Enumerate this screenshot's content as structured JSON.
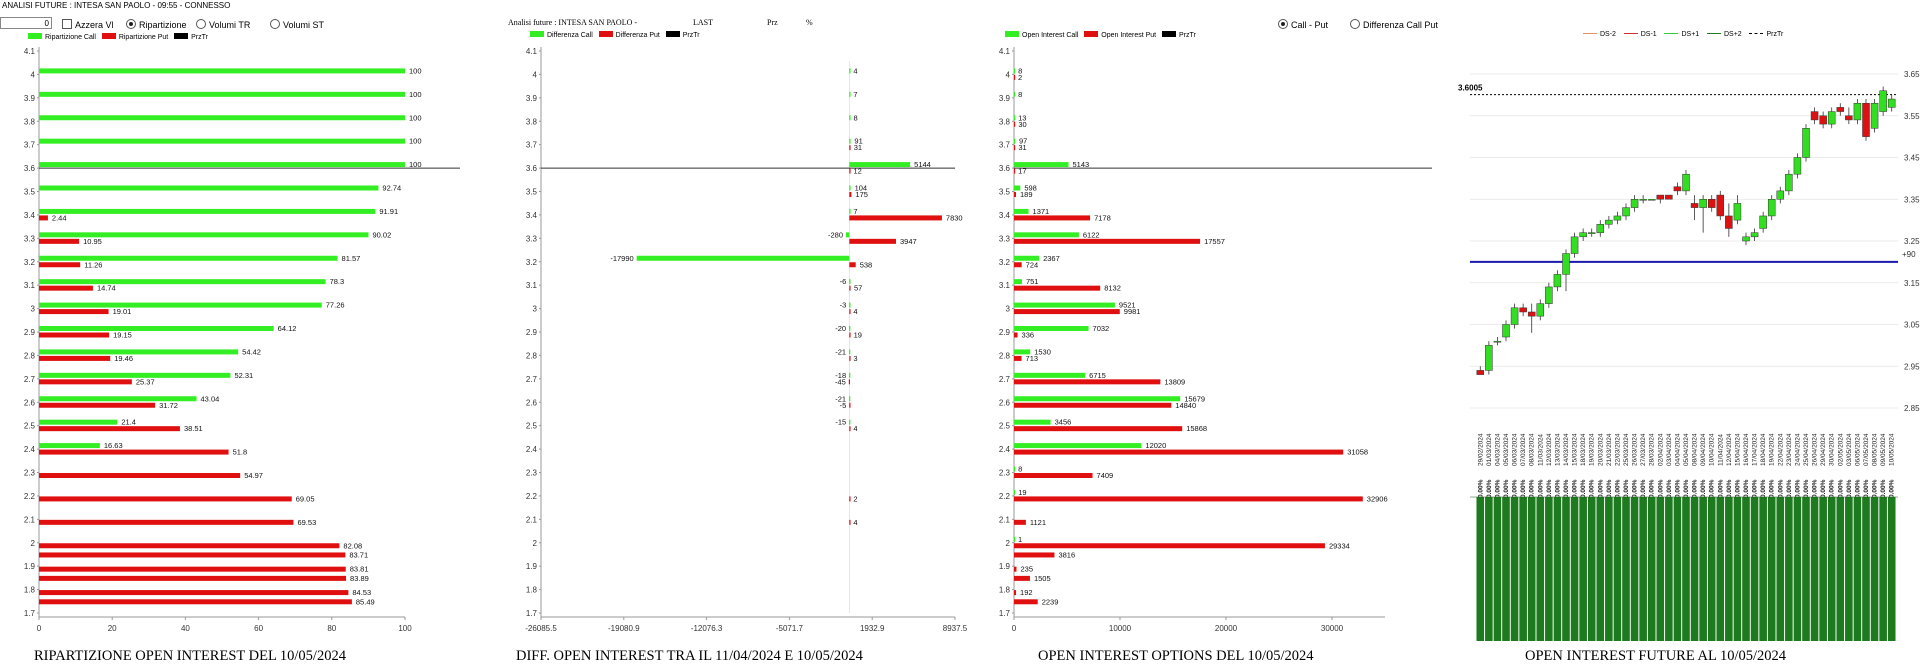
{
  "header": {
    "title": "ANALISI FUTURE : INTESA SAN PAOLO - 09:55 - CONNESSO",
    "input_value": "0",
    "azzera_label": "Azzera Vl",
    "radio_options": [
      "Ripartizione",
      "Volumi TR",
      "Volumi ST"
    ],
    "selected_radio": "Ripartizione"
  },
  "panel1_legend": [
    "Ripartizione Call",
    "Ripartizione Put",
    "PrzTr"
  ],
  "panel2_header": {
    "title": "Analisi future : INTESA SAN PAOLO -",
    "last_label": "LAST",
    "prz_label": "Prz",
    "pct_label": "%"
  },
  "panel2_legend": [
    "Differenza Call",
    "Differenza Put",
    "PrzTr"
  ],
  "panel3_legend": [
    "Open Interest Call",
    "Open Interest Put",
    "PrzTr"
  ],
  "panel3_radios": [
    "Call - Put",
    "Differenza Call Put"
  ],
  "panel3_selected_radio": "Call - Put",
  "panel4_legend": [
    "DS-2",
    "DS-1",
    "DS+1",
    "DS+2",
    "PrzTr"
  ],
  "colors": {
    "call": "#33ee22",
    "put": "#e01010",
    "blue_line": "#1a1aaa",
    "oi_bar": "#1e7a1e"
  },
  "chart_data": [
    {
      "type": "bar",
      "orientation": "horizontal",
      "title": "RIPARTIZIONE OPEN INTEREST DEL 10/05/2024",
      "categories": [
        "4.1",
        "4",
        "3.9",
        "3.8",
        "3.7",
        "3.6",
        "3.5",
        "3.4",
        "3.3",
        "3.2",
        "3.1",
        "3",
        "2.9",
        "2.8",
        "2.7",
        "2.6",
        "2.5",
        "2.4",
        "2.3",
        "2.2",
        "2.1",
        "2",
        "1.9",
        "1.8",
        "1.7"
      ],
      "series": [
        {
          "name": "Ripartizione Call",
          "values": [
            null,
            100,
            100,
            100,
            100,
            100,
            92.74,
            91.91,
            90.02,
            81.57,
            78.3,
            77.26,
            64.12,
            54.42,
            52.31,
            43.04,
            21.4,
            16.63,
            null,
            null,
            null,
            null,
            null,
            null,
            null
          ]
        },
        {
          "name": "Ripartizione Put",
          "values": [
            null,
            null,
            null,
            null,
            null,
            null,
            null,
            2.44,
            10.95,
            11.26,
            14.74,
            19.01,
            19.15,
            19.46,
            25.37,
            31.72,
            38.51,
            51.8,
            54.97,
            69.05,
            69.53,
            82.08,
            83.81,
            84.53,
            null
          ]
        }
      ],
      "extra_put": {
        "category": "1.95",
        "value": 83.71
      },
      "extra_put2": {
        "category": "1.85",
        "value": 83.89
      },
      "extra_put3": {
        "category": "1.75",
        "value": 85.49
      },
      "xlim": [
        0,
        100
      ],
      "xticks": [
        0,
        20,
        40,
        60,
        80,
        100
      ],
      "price_line": 3.6
    },
    {
      "type": "bar",
      "orientation": "horizontal",
      "title": "DIFF. OPEN INTEREST TRA IL 11/04/2024 E 10/05/2024",
      "categories": [
        "4.1",
        "4",
        "3.9",
        "3.8",
        "3.7",
        "3.6",
        "3.5",
        "3.4",
        "3.3",
        "3.2",
        "3.1",
        "3",
        "2.9",
        "2.8",
        "2.7",
        "2.6",
        "2.5",
        "2.4",
        "2.3",
        "2.2",
        "2.1",
        "2",
        "1.9",
        "1.8",
        "1.7"
      ],
      "series": [
        {
          "name": "Differenza Call",
          "values": [
            null,
            4,
            7,
            8,
            91,
            5144,
            104,
            7,
            -280,
            -17990,
            -6,
            -3,
            -20,
            -21,
            -18,
            -21,
            -15,
            null,
            null,
            null,
            null,
            null,
            null,
            null,
            null
          ]
        },
        {
          "name": "Differenza Put",
          "values": [
            null,
            null,
            null,
            null,
            31,
            12,
            175,
            7830,
            3947,
            538,
            57,
            4,
            19,
            3,
            -45,
            -5,
            4,
            null,
            null,
            2,
            4,
            null,
            null,
            null,
            null
          ]
        }
      ],
      "xlim": [
        -26085.5,
        8937.5
      ],
      "xticks": [
        -26085.5,
        -19080.9,
        -12076.3,
        -5071.7,
        1932.9,
        8937.5
      ],
      "price_line": 3.6
    },
    {
      "type": "bar",
      "orientation": "horizontal",
      "title": "OPEN INTEREST OPTIONS DEL 10/05/2024",
      "categories": [
        "4.1",
        "4",
        "3.9",
        "3.8",
        "3.7",
        "3.6",
        "3.5",
        "3.4",
        "3.3",
        "3.2",
        "3.1",
        "3",
        "2.9",
        "2.8",
        "2.7",
        "2.6",
        "2.5",
        "2.4",
        "2.3",
        "2.2",
        "2.1",
        "2",
        "1.9",
        "1.8",
        "1.7"
      ],
      "series": [
        {
          "name": "Open Interest Call",
          "values": [
            null,
            8,
            8,
            13,
            97,
            5143,
            598,
            1371,
            6122,
            2367,
            751,
            9521,
            7032,
            1530,
            6715,
            15679,
            3456,
            12020,
            8,
            19,
            null,
            1,
            null,
            null,
            null
          ]
        },
        {
          "name": "Open Interest Put",
          "values": [
            null,
            2,
            null,
            30,
            31,
            17,
            189,
            7178,
            17557,
            724,
            8132,
            9981,
            336,
            713,
            13809,
            14840,
            15868,
            31058,
            7409,
            32906,
            1121,
            29334,
            235,
            192,
            null
          ]
        }
      ],
      "extra_put": {
        "category": "1.95",
        "value": 3816
      },
      "extra_put2": {
        "category": "1.85",
        "value": 1505
      },
      "extra_put3": {
        "category": "1.75",
        "value": 2239
      },
      "xlim": [
        0,
        35000
      ],
      "xticks": [
        0,
        10000,
        20000,
        30000
      ],
      "price_line": 3.6
    },
    {
      "type": "candlestick",
      "title": "OPEN INTEREST FUTURE AL 10/05/2024",
      "price_label": "3.6005",
      "line_label": "+90",
      "blue_line": 3.2,
      "ylim": [
        2.85,
        3.65
      ],
      "yticks": [
        2.85,
        2.95,
        3.05,
        3.15,
        3.25,
        3.35,
        3.45,
        3.55,
        3.65
      ],
      "dates": [
        "29/02/2024",
        "01/03/2024",
        "04/03/2024",
        "05/03/2024",
        "06/03/2024",
        "07/03/2024",
        "08/03/2024",
        "11/03/2024",
        "12/03/2024",
        "13/03/2024",
        "14/03/2024",
        "15/03/2024",
        "18/03/2024",
        "19/03/2024",
        "20/03/2024",
        "21/03/2024",
        "22/03/2024",
        "25/03/2024",
        "26/03/2024",
        "27/03/2024",
        "28/03/2024",
        "02/04/2024",
        "03/04/2024",
        "04/04/2024",
        "05/04/2024",
        "08/04/2024",
        "09/04/2024",
        "10/04/2024",
        "11/04/2024",
        "12/04/2024",
        "15/04/2024",
        "16/04/2024",
        "17/04/2024",
        "18/04/2024",
        "19/04/2024",
        "22/04/2024",
        "23/04/2024",
        "24/04/2024",
        "25/04/2024",
        "26/04/2024",
        "29/04/2024",
        "30/04/2024",
        "02/05/2024",
        "03/05/2024",
        "06/05/2024",
        "07/05/2024",
        "08/05/2024",
        "09/05/2024",
        "10/05/2024"
      ],
      "ohlc": [
        [
          2.94,
          2.95,
          2.93,
          2.93
        ],
        [
          2.94,
          3.01,
          2.93,
          3.0
        ],
        [
          3.01,
          3.02,
          3.0,
          3.01
        ],
        [
          3.02,
          3.06,
          3.01,
          3.05
        ],
        [
          3.05,
          3.1,
          3.04,
          3.09
        ],
        [
          3.09,
          3.1,
          3.07,
          3.08
        ],
        [
          3.08,
          3.1,
          3.03,
          3.07
        ],
        [
          3.07,
          3.11,
          3.06,
          3.1
        ],
        [
          3.1,
          3.15,
          3.09,
          3.14
        ],
        [
          3.14,
          3.18,
          3.13,
          3.17
        ],
        [
          3.17,
          3.23,
          3.13,
          3.22
        ],
        [
          3.22,
          3.27,
          3.21,
          3.26
        ],
        [
          3.26,
          3.28,
          3.25,
          3.27
        ],
        [
          3.27,
          3.28,
          3.26,
          3.27
        ],
        [
          3.27,
          3.3,
          3.26,
          3.29
        ],
        [
          3.29,
          3.31,
          3.28,
          3.3
        ],
        [
          3.3,
          3.32,
          3.29,
          3.31
        ],
        [
          3.31,
          3.34,
          3.3,
          3.33
        ],
        [
          3.33,
          3.36,
          3.32,
          3.35
        ],
        [
          3.35,
          3.36,
          3.34,
          3.35
        ],
        [
          3.35,
          3.35,
          3.35,
          3.35
        ],
        [
          3.36,
          3.36,
          3.34,
          3.35
        ],
        [
          3.36,
          3.36,
          3.35,
          3.35
        ],
        [
          3.38,
          3.39,
          3.36,
          3.37
        ],
        [
          3.37,
          3.42,
          3.36,
          3.41
        ],
        [
          3.34,
          3.36,
          3.3,
          3.33
        ],
        [
          3.33,
          3.36,
          3.27,
          3.35
        ],
        [
          3.35,
          3.36,
          3.32,
          3.33
        ],
        [
          3.36,
          3.37,
          3.3,
          3.31
        ],
        [
          3.31,
          3.34,
          3.26,
          3.28
        ],
        [
          3.3,
          3.36,
          3.29,
          3.34
        ],
        [
          3.25,
          3.27,
          3.24,
          3.26
        ],
        [
          3.26,
          3.28,
          3.25,
          3.27
        ],
        [
          3.28,
          3.32,
          3.27,
          3.31
        ],
        [
          3.31,
          3.36,
          3.3,
          3.35
        ],
        [
          3.35,
          3.38,
          3.34,
          3.37
        ],
        [
          3.37,
          3.42,
          3.36,
          3.41
        ],
        [
          3.41,
          3.46,
          3.4,
          3.45
        ],
        [
          3.45,
          3.53,
          3.44,
          3.52
        ],
        [
          3.56,
          3.57,
          3.53,
          3.54
        ],
        [
          3.55,
          3.56,
          3.52,
          3.53
        ],
        [
          3.53,
          3.57,
          3.52,
          3.56
        ],
        [
          3.57,
          3.58,
          3.55,
          3.56
        ],
        [
          3.55,
          3.57,
          3.53,
          3.54
        ],
        [
          3.54,
          3.59,
          3.53,
          3.58
        ],
        [
          3.58,
          3.59,
          3.49,
          3.5
        ],
        [
          3.52,
          3.59,
          3.51,
          3.58
        ],
        [
          3.56,
          3.62,
          3.55,
          3.61
        ],
        [
          3.57,
          3.6,
          3.56,
          3.59
        ]
      ],
      "pct_label": "0.00%"
    }
  ]
}
